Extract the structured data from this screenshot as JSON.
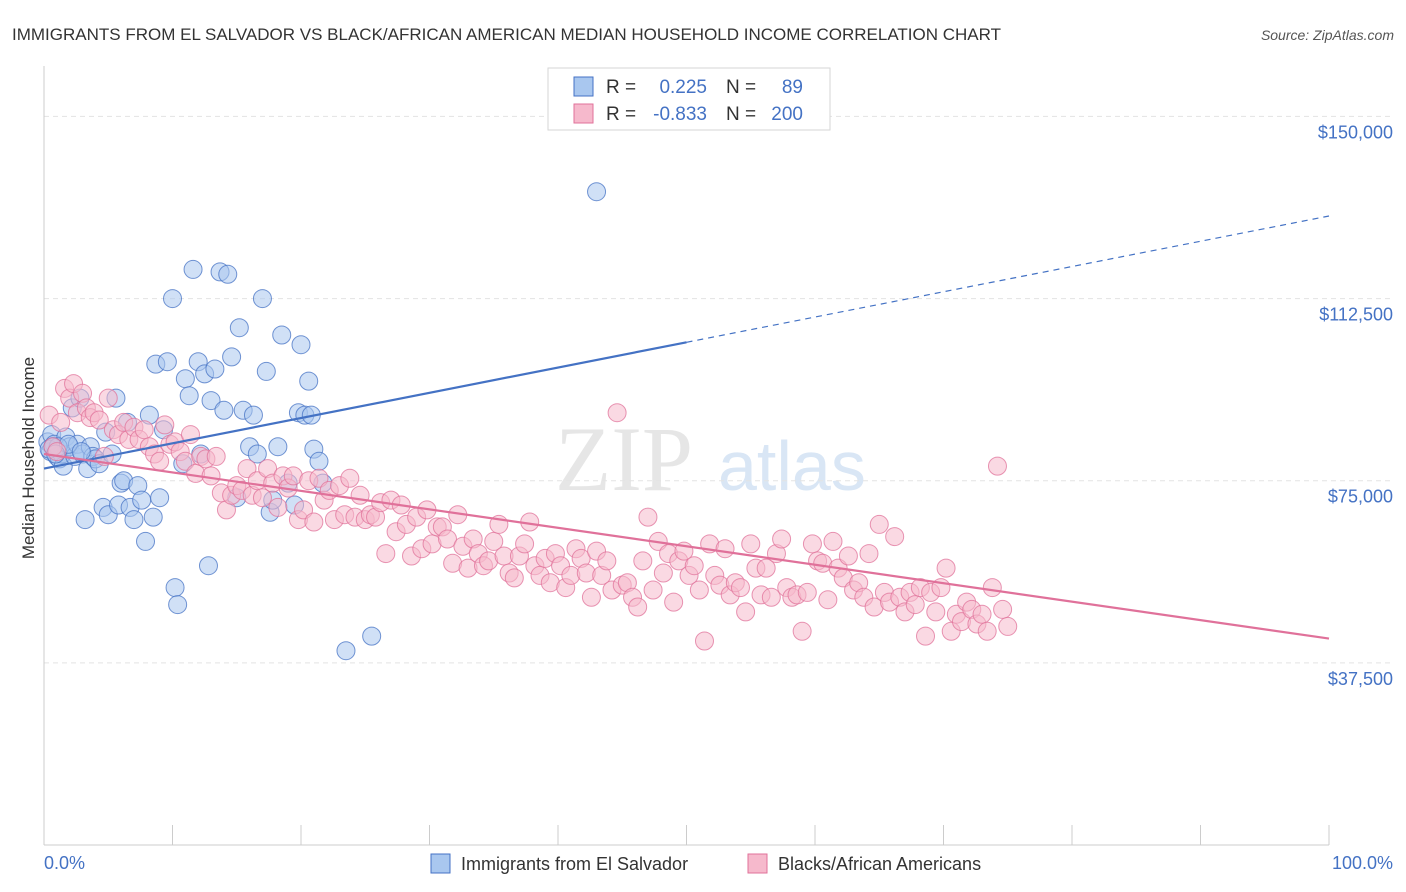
{
  "title": "IMMIGRANTS FROM EL SALVADOR VS BLACK/AFRICAN AMERICAN MEDIAN HOUSEHOLD INCOME CORRELATION CHART",
  "source": "Source: ZipAtlas.com",
  "watermark": {
    "part1": "ZIP",
    "part2": "atlas"
  },
  "colors": {
    "blue": "#4472c4",
    "pink": "#e0719a",
    "blue_fill": "#a9c7ef",
    "pink_fill": "#f6b9cc"
  },
  "legend_stats": [
    {
      "r_label": "R =",
      "r_value": "0.225",
      "n_label": "N =",
      "n_value": "89"
    },
    {
      "r_label": "R =",
      "r_value": "-0.833",
      "n_label": "N =",
      "n_value": "200"
    }
  ],
  "chart_data": {
    "type": "scatter",
    "title": "IMMIGRANTS FROM EL SALVADOR VS BLACK/AFRICAN AMERICAN MEDIAN HOUSEHOLD INCOME CORRELATION CHART",
    "xlabel": "",
    "ylabel": "Median Household Income",
    "xlim": [
      0,
      100
    ],
    "ylim": [
      0,
      157500
    ],
    "x_tick_labels": [
      "0.0%",
      "100.0%"
    ],
    "y_ticks": [
      37500,
      75000,
      112500,
      150000
    ],
    "y_tick_labels": [
      "$37,500",
      "$75,000",
      "$112,500",
      "$150,000"
    ],
    "grid": true,
    "legend_position": "bottom",
    "series": [
      {
        "name": "Immigrants from El Salvador",
        "color": "#4472c4",
        "trend": {
          "x": [
            0,
            50
          ],
          "y": [
            77500,
            103500
          ],
          "dashed_extension": {
            "x": [
              50,
              100
            ],
            "y": [
              103500,
              129500
            ]
          }
        },
        "points": [
          [
            0.3,
            83000
          ],
          [
            0.5,
            81000
          ],
          [
            0.6,
            84500
          ],
          [
            0.8,
            82500
          ],
          [
            1.0,
            80000
          ],
          [
            1.2,
            79500
          ],
          [
            1.4,
            80500
          ],
          [
            1.5,
            78000
          ],
          [
            1.7,
            84000
          ],
          [
            2.0,
            82000
          ],
          [
            2.2,
            90000
          ],
          [
            2.4,
            80000
          ],
          [
            2.6,
            82500
          ],
          [
            2.8,
            92000
          ],
          [
            3.0,
            80500
          ],
          [
            3.2,
            67000
          ],
          [
            3.4,
            77500
          ],
          [
            3.6,
            82000
          ],
          [
            3.8,
            80000
          ],
          [
            4.0,
            79500
          ],
          [
            4.3,
            78500
          ],
          [
            4.6,
            69500
          ],
          [
            4.8,
            85000
          ],
          [
            5.0,
            68000
          ],
          [
            5.3,
            80500
          ],
          [
            5.6,
            92000
          ],
          [
            5.8,
            70000
          ],
          [
            6.0,
            74500
          ],
          [
            6.2,
            75000
          ],
          [
            6.5,
            87000
          ],
          [
            6.7,
            69500
          ],
          [
            7.0,
            67000
          ],
          [
            7.3,
            74000
          ],
          [
            7.6,
            71000
          ],
          [
            7.9,
            62500
          ],
          [
            8.2,
            88500
          ],
          [
            8.5,
            67500
          ],
          [
            8.7,
            99000
          ],
          [
            9.0,
            71500
          ],
          [
            9.3,
            85500
          ],
          [
            9.6,
            99500
          ],
          [
            10.0,
            112500
          ],
          [
            10.2,
            53000
          ],
          [
            10.4,
            49500
          ],
          [
            10.8,
            78500
          ],
          [
            11.0,
            96000
          ],
          [
            11.3,
            92500
          ],
          [
            11.6,
            118500
          ],
          [
            12.0,
            99500
          ],
          [
            12.2,
            80500
          ],
          [
            12.5,
            97000
          ],
          [
            12.8,
            57500
          ],
          [
            13.0,
            91500
          ],
          [
            13.3,
            98000
          ],
          [
            13.7,
            118000
          ],
          [
            14.0,
            89500
          ],
          [
            14.3,
            117500
          ],
          [
            14.6,
            100500
          ],
          [
            15.0,
            71500
          ],
          [
            15.2,
            106500
          ],
          [
            15.5,
            89500
          ],
          [
            16.0,
            82000
          ],
          [
            16.3,
            88500
          ],
          [
            16.6,
            80500
          ],
          [
            17.0,
            112500
          ],
          [
            17.3,
            97500
          ],
          [
            17.6,
            68500
          ],
          [
            17.8,
            71000
          ],
          [
            18.2,
            82000
          ],
          [
            18.5,
            105000
          ],
          [
            19.0,
            74500
          ],
          [
            19.5,
            70000
          ],
          [
            19.8,
            89000
          ],
          [
            20.0,
            103000
          ],
          [
            20.3,
            88500
          ],
          [
            20.6,
            95500
          ],
          [
            20.8,
            88500
          ],
          [
            21.0,
            81500
          ],
          [
            21.4,
            79000
          ],
          [
            21.7,
            74500
          ],
          [
            23.5,
            40000
          ],
          [
            25.5,
            43000
          ],
          [
            43.0,
            134500
          ],
          [
            0.4,
            81500
          ],
          [
            1.1,
            82000
          ],
          [
            0.7,
            82000
          ],
          [
            1.9,
            82500
          ],
          [
            0.9,
            80500
          ],
          [
            2.9,
            81000
          ]
        ]
      },
      {
        "name": "Blacks/African Americans",
        "color": "#e0719a",
        "trend": {
          "x": [
            0,
            100
          ],
          "y": [
            80500,
            42500
          ]
        },
        "points": [
          [
            0.4,
            88500
          ],
          [
            0.7,
            82000
          ],
          [
            1.0,
            81000
          ],
          [
            1.3,
            87000
          ],
          [
            1.6,
            94000
          ],
          [
            2.0,
            92000
          ],
          [
            2.3,
            95000
          ],
          [
            2.6,
            89000
          ],
          [
            3.0,
            93000
          ],
          [
            3.3,
            90000
          ],
          [
            3.6,
            88000
          ],
          [
            3.9,
            89000
          ],
          [
            4.3,
            87500
          ],
          [
            4.7,
            80000
          ],
          [
            5.0,
            92000
          ],
          [
            5.4,
            85500
          ],
          [
            5.8,
            84500
          ],
          [
            6.2,
            87000
          ],
          [
            6.6,
            83500
          ],
          [
            7.0,
            86000
          ],
          [
            7.4,
            83500
          ],
          [
            7.8,
            85500
          ],
          [
            8.2,
            82000
          ],
          [
            8.6,
            80500
          ],
          [
            9.0,
            79000
          ],
          [
            9.4,
            86500
          ],
          [
            9.8,
            82500
          ],
          [
            10.2,
            83000
          ],
          [
            10.6,
            81000
          ],
          [
            11.0,
            79000
          ],
          [
            11.4,
            84500
          ],
          [
            11.8,
            76500
          ],
          [
            12.2,
            80000
          ],
          [
            12.6,
            79500
          ],
          [
            13.0,
            76000
          ],
          [
            13.4,
            80000
          ],
          [
            13.8,
            72500
          ],
          [
            14.2,
            69000
          ],
          [
            14.6,
            72000
          ],
          [
            15.0,
            74000
          ],
          [
            15.4,
            73000
          ],
          [
            15.8,
            77500
          ],
          [
            16.2,
            72000
          ],
          [
            16.6,
            75000
          ],
          [
            17.0,
            71500
          ],
          [
            17.4,
            77500
          ],
          [
            17.8,
            74500
          ],
          [
            18.2,
            69500
          ],
          [
            18.6,
            76000
          ],
          [
            19.0,
            73500
          ],
          [
            19.4,
            76000
          ],
          [
            19.8,
            67000
          ],
          [
            20.2,
            69000
          ],
          [
            20.6,
            75000
          ],
          [
            21.0,
            66500
          ],
          [
            21.4,
            75500
          ],
          [
            21.8,
            71000
          ],
          [
            22.2,
            73000
          ],
          [
            22.6,
            67000
          ],
          [
            23.0,
            74000
          ],
          [
            23.4,
            68000
          ],
          [
            23.8,
            75500
          ],
          [
            24.2,
            67500
          ],
          [
            24.6,
            72000
          ],
          [
            25.0,
            67000
          ],
          [
            25.4,
            68000
          ],
          [
            25.8,
            67500
          ],
          [
            26.2,
            70500
          ],
          [
            26.6,
            60000
          ],
          [
            27.0,
            71000
          ],
          [
            27.4,
            64500
          ],
          [
            27.8,
            70000
          ],
          [
            28.2,
            66000
          ],
          [
            28.6,
            59500
          ],
          [
            29.0,
            67500
          ],
          [
            29.4,
            61000
          ],
          [
            29.8,
            69000
          ],
          [
            30.2,
            62000
          ],
          [
            30.6,
            65500
          ],
          [
            31.0,
            65500
          ],
          [
            31.4,
            63000
          ],
          [
            31.8,
            58000
          ],
          [
            32.2,
            68000
          ],
          [
            32.6,
            61500
          ],
          [
            33.0,
            57000
          ],
          [
            33.4,
            63000
          ],
          [
            33.8,
            60000
          ],
          [
            34.2,
            57500
          ],
          [
            34.6,
            58500
          ],
          [
            35.0,
            62500
          ],
          [
            35.4,
            66000
          ],
          [
            35.8,
            59500
          ],
          [
            36.2,
            56000
          ],
          [
            36.6,
            55000
          ],
          [
            37.0,
            59500
          ],
          [
            37.4,
            62000
          ],
          [
            37.8,
            66500
          ],
          [
            38.2,
            57500
          ],
          [
            38.6,
            55500
          ],
          [
            39.0,
            59000
          ],
          [
            39.4,
            54000
          ],
          [
            39.8,
            60000
          ],
          [
            40.2,
            57500
          ],
          [
            40.6,
            53000
          ],
          [
            41.0,
            55500
          ],
          [
            41.4,
            61000
          ],
          [
            41.8,
            59000
          ],
          [
            42.2,
            56000
          ],
          [
            42.6,
            51000
          ],
          [
            43.0,
            60500
          ],
          [
            43.4,
            55500
          ],
          [
            43.8,
            58500
          ],
          [
            44.2,
            52500
          ],
          [
            44.6,
            89000
          ],
          [
            45.0,
            53500
          ],
          [
            45.4,
            54000
          ],
          [
            45.8,
            51000
          ],
          [
            46.2,
            49000
          ],
          [
            46.6,
            58500
          ],
          [
            47.0,
            67500
          ],
          [
            47.4,
            52500
          ],
          [
            47.8,
            62500
          ],
          [
            48.2,
            56000
          ],
          [
            48.6,
            60000
          ],
          [
            49.0,
            50000
          ],
          [
            49.4,
            58500
          ],
          [
            49.8,
            60500
          ],
          [
            50.2,
            55500
          ],
          [
            50.6,
            57500
          ],
          [
            51.0,
            52500
          ],
          [
            51.4,
            42000
          ],
          [
            51.8,
            62000
          ],
          [
            52.2,
            55500
          ],
          [
            52.6,
            53500
          ],
          [
            53.0,
            61000
          ],
          [
            53.4,
            51500
          ],
          [
            53.8,
            54000
          ],
          [
            54.2,
            53000
          ],
          [
            54.6,
            48000
          ],
          [
            55.0,
            62000
          ],
          [
            55.4,
            57000
          ],
          [
            55.8,
            51500
          ],
          [
            56.2,
            57000
          ],
          [
            56.6,
            51000
          ],
          [
            57.0,
            60000
          ],
          [
            57.4,
            63000
          ],
          [
            57.8,
            53000
          ],
          [
            58.2,
            51000
          ],
          [
            58.6,
            51500
          ],
          [
            59.0,
            44000
          ],
          [
            59.4,
            52000
          ],
          [
            59.8,
            62000
          ],
          [
            60.2,
            58500
          ],
          [
            60.6,
            58000
          ],
          [
            61.0,
            50500
          ],
          [
            61.4,
            62500
          ],
          [
            61.8,
            57000
          ],
          [
            62.2,
            55000
          ],
          [
            62.6,
            59500
          ],
          [
            63.0,
            52500
          ],
          [
            63.4,
            54000
          ],
          [
            63.8,
            51000
          ],
          [
            64.2,
            60000
          ],
          [
            64.6,
            49000
          ],
          [
            65.0,
            66000
          ],
          [
            65.4,
            52000
          ],
          [
            65.8,
            50000
          ],
          [
            66.2,
            63500
          ],
          [
            66.6,
            51000
          ],
          [
            67.0,
            48000
          ],
          [
            67.4,
            52000
          ],
          [
            67.8,
            49500
          ],
          [
            68.2,
            53000
          ],
          [
            68.6,
            43000
          ],
          [
            69.0,
            52000
          ],
          [
            69.4,
            48000
          ],
          [
            69.8,
            53000
          ],
          [
            70.2,
            57000
          ],
          [
            70.6,
            44000
          ],
          [
            71.0,
            47500
          ],
          [
            71.4,
            46000
          ],
          [
            71.8,
            50000
          ],
          [
            72.2,
            48500
          ],
          [
            72.6,
            45500
          ],
          [
            73.0,
            47500
          ],
          [
            73.4,
            44000
          ],
          [
            73.8,
            53000
          ],
          [
            74.2,
            78000
          ],
          [
            74.6,
            48500
          ],
          [
            75.0,
            45000
          ]
        ]
      }
    ]
  },
  "bottom_legend": [
    "Immigrants from El Salvador",
    "Blacks/African Americans"
  ]
}
